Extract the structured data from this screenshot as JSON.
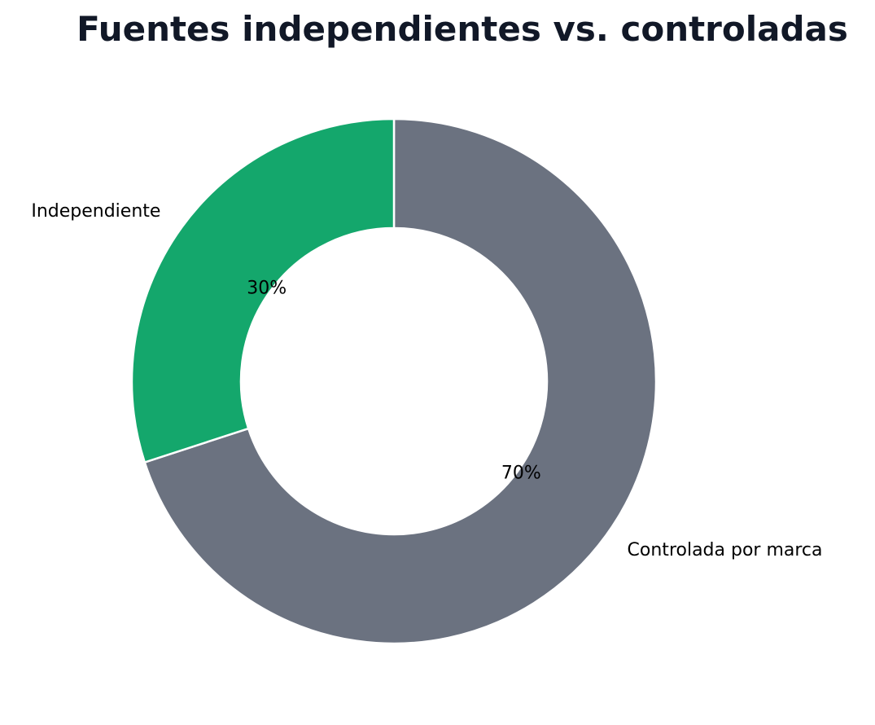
{
  "chart_data": {
    "type": "pie",
    "variant": "donut",
    "title": "Fuentes independientes vs. controladas",
    "categories": [
      "Controlada por marca",
      "Independiente"
    ],
    "values": [
      70,
      30
    ],
    "value_labels": [
      "70%",
      "30%"
    ],
    "colors": [
      "#6b7280",
      "#14a76c"
    ],
    "legend": "none"
  }
}
